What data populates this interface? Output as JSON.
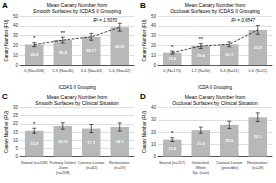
{
  "chart_data": [
    {
      "type": "bar",
      "label": "A",
      "title": "Mean Canary Number from\nSmooth Surfaces by ICDAS II Grouping",
      "xlabel": "ICDAS II Grouping",
      "ylabel": "Canary Number (FU)",
      "categories": [
        "0 (No=308)",
        "1-3 (No=40)",
        "3-4 (No=40)",
        "5-6 (No=42)"
      ],
      "series": [
        {
          "type": "bar",
          "color": "#b8b8b8",
          "values": [
            20.8,
            25.4,
            28.77,
            38.51
          ],
          "errors": [
            2.0,
            3.0,
            3.5,
            4.0
          ]
        },
        {
          "type": "line",
          "line_style": "dashed",
          "color": "#000000",
          "values": [
            20.8,
            25.4,
            28.77,
            38.51
          ]
        }
      ],
      "sig_stars": [
        "*",
        "**",
        null,
        null
      ],
      "annotation": "R² = 1.5070",
      "ylim": [
        0,
        50
      ],
      "yticks": [
        0,
        10,
        20,
        30,
        40,
        50
      ],
      "grid": true,
      "data_labels": true
    },
    {
      "type": "bar",
      "label": "B",
      "title": "Mean Canary Number from\nOcclusal Surfaces by ICDAS II Grouping",
      "xlabel": "ICDA II Grouping",
      "ylabel": "Canary Number (FU)",
      "categories": [
        "0 (N=170)",
        "1-2 (N=50)",
        "3-4 (N=51)",
        "5-6 (N=11)"
      ],
      "series": [
        {
          "type": "bar",
          "color": "#b8b8b8",
          "values": [
            12.6,
            19.4,
            21.1,
            35.8
          ],
          "errors": [
            1.5,
            2.5,
            2.5,
            4.5
          ]
        },
        {
          "type": "line",
          "line_style": "dashed",
          "color": "#000000",
          "values": [
            12.6,
            19.4,
            21.1,
            35.8
          ]
        }
      ],
      "sig_stars": [
        "*",
        "**",
        null,
        null
      ],
      "annotation": "R² = 0.9547",
      "ylim": [
        0,
        50
      ],
      "yticks": [
        0,
        10,
        20,
        30,
        40,
        50
      ],
      "grid": true,
      "data_labels": true
    },
    {
      "type": "bar",
      "label": "C",
      "title": "Mean Canary Number from\nSmooth Surfaces by Clinical Situation",
      "ylabel": "Canary Number (FU)",
      "categories": [
        "Sound (n=208)",
        "Primary Defect Zone\n(n=208)",
        "Carious Lesion (n=62)",
        "Restoration (n=19)"
      ],
      "series": [
        {
          "type": "bar",
          "color": "#b8b8b8",
          "values": [
            15.8,
            18.72,
            17.1,
            18.1
          ],
          "errors": [
            1.5,
            2.0,
            2.5,
            2.5
          ]
        }
      ],
      "sig_stars": [
        "*",
        null,
        null,
        null
      ],
      "ylim": [
        0,
        30
      ],
      "yticks": [
        0,
        5,
        10,
        15,
        20,
        25,
        30
      ],
      "grid": true,
      "data_labels": true
    },
    {
      "type": "bar",
      "label": "D",
      "title": "Mean Canary Number from\nOcclusal Surfaces by Clinical Situation",
      "ylabel": "Canary Number (FU)",
      "categories": [
        "Sound (n=117)",
        "Unsealed White\nSp. (n=n)",
        "Carious Lesion (possible)",
        "Restoration (n=18)"
      ],
      "series": [
        {
          "type": "bar",
          "color": "#b8b8b8",
          "values": [
            13.8,
            21.5,
            25.8,
            32.1
          ],
          "errors": [
            1.5,
            2.5,
            3.0,
            3.5
          ]
        }
      ],
      "sig_stars": [
        "*",
        null,
        null,
        null
      ],
      "ylim": [
        0,
        40
      ],
      "yticks": [
        0,
        10,
        20,
        30,
        40
      ],
      "grid": true,
      "data_labels": true
    }
  ]
}
